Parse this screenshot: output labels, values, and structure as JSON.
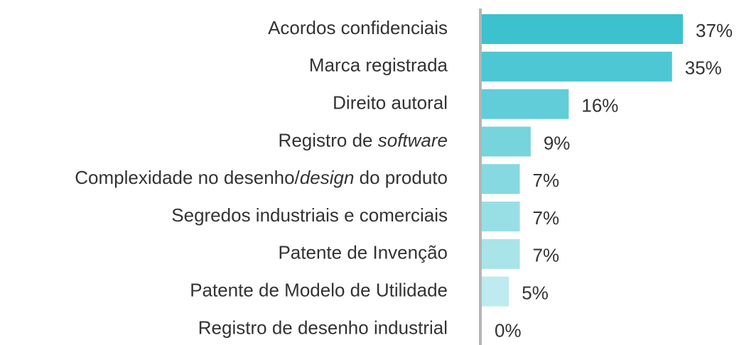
{
  "chart_data": {
    "type": "barh",
    "categories": [
      "Acordos confidenciais",
      "Marca registrada",
      "Direito autoral",
      "Registro de software",
      "Complexidade no desenho/design do produto",
      "Segredos industriais e comerciais",
      "Patente de Invenção",
      "Patente de Modelo de Utilidade",
      "Registro de desenho industrial"
    ],
    "italic": [
      "software",
      "design"
    ],
    "values": [
      37,
      35,
      16,
      9,
      7,
      7,
      7,
      5,
      0
    ],
    "value_labels": [
      "37%",
      "35%",
      "16%",
      "9%",
      "7%",
      "7%",
      "7%",
      "5%",
      "0%"
    ],
    "colors": [
      "#3cc1cf",
      "#4cc7d3",
      "#61cdd8",
      "#76d4dd",
      "#87d9e1",
      "#98dfe5",
      "#a9e4e9",
      "#bdebef",
      "#cdeff2"
    ]
  }
}
